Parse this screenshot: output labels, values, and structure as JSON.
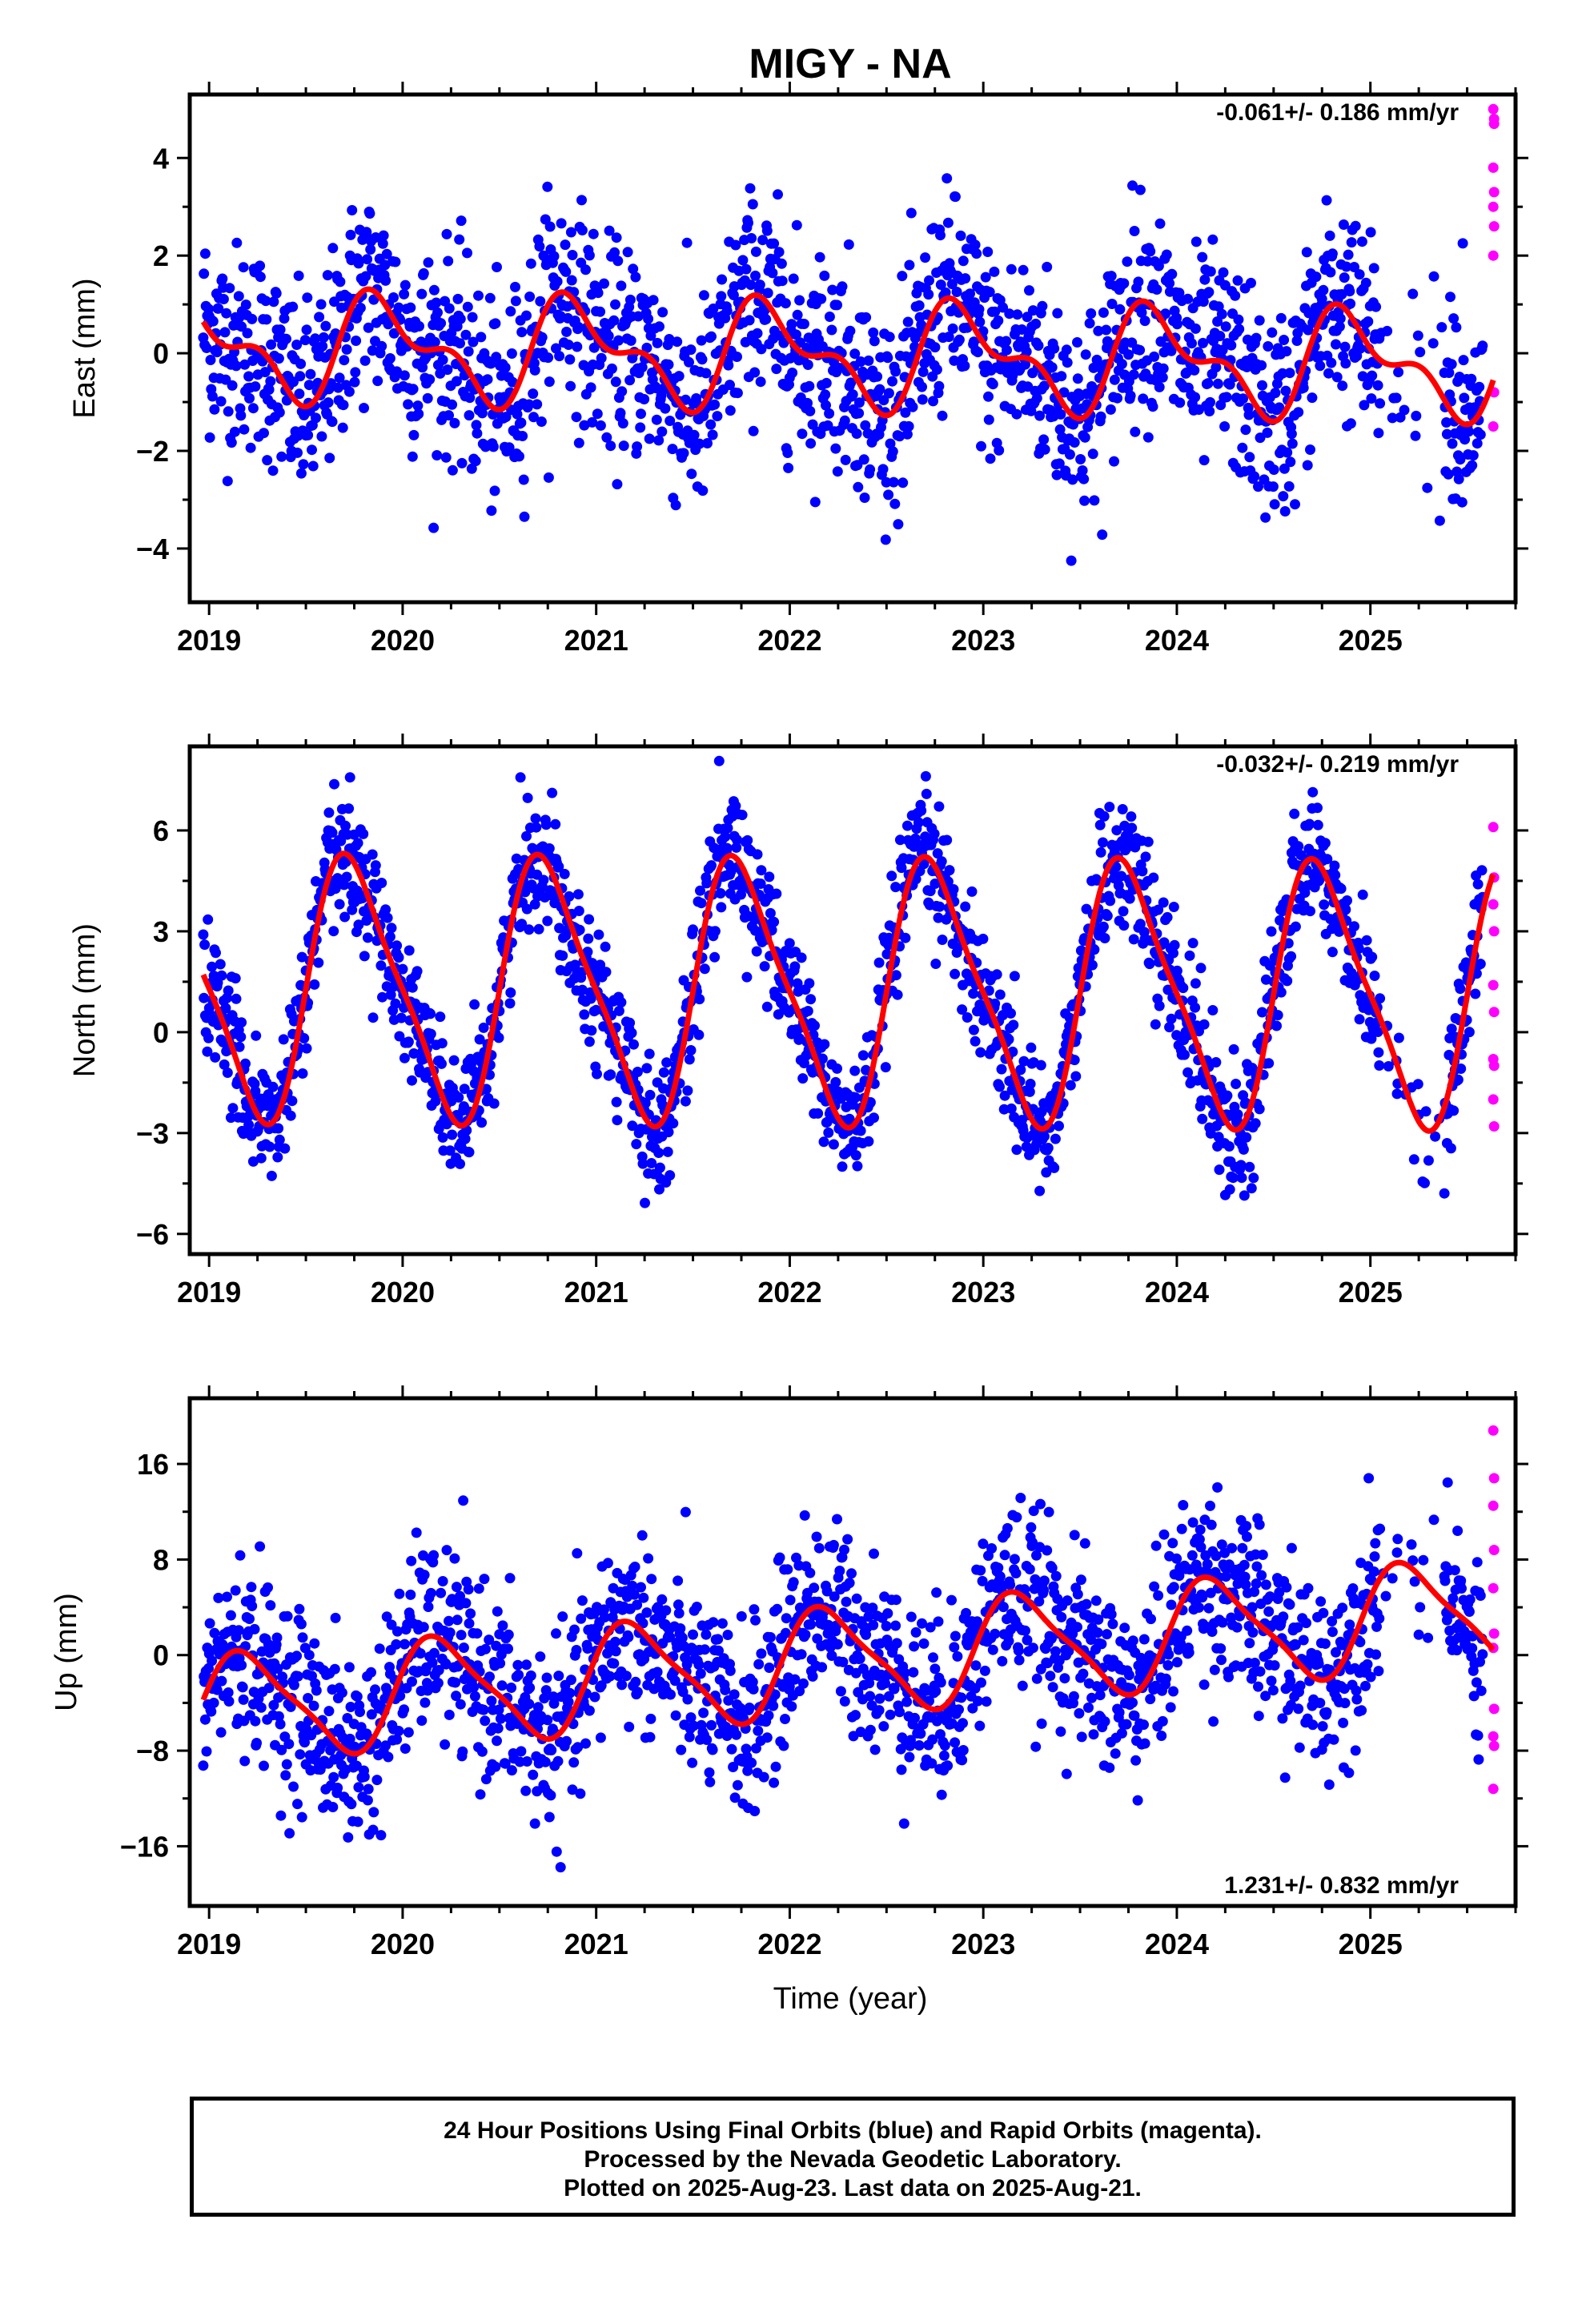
{
  "title": "MIGY - NA",
  "xlabel": "Time (year)",
  "footer": {
    "line1": "24 Hour Positions Using Final Orbits (blue) and Rapid Orbits (magenta).",
    "line2": "Processed by the Nevada Geodetic Laboratory.",
    "line3": "Plotted on 2025-Aug-23. Last data on 2025-Aug-21."
  },
  "colors": {
    "final": "#0000ff",
    "rapid": "#ff00ff",
    "model": "#ff0000",
    "axis": "#000000"
  },
  "chart_data": [
    {
      "type": "scatter",
      "ylabel": "East (mm)",
      "rate_label": "-0.061+/- 0.186 mm/yr",
      "xlim": [
        2018.9,
        2025.75
      ],
      "ylim": [
        -5.1,
        5.3
      ],
      "xticks": [
        2019,
        2020,
        2021,
        2022,
        2023,
        2024,
        2025
      ],
      "yticks": [
        -4,
        -2,
        0,
        2,
        4
      ],
      "model": {
        "amp": 0.9,
        "amp2": 0.5,
        "phase": 0.66,
        "trend": -0.061,
        "offset": 0.15
      },
      "noise": 1.05,
      "rapid_values": [
        5.0,
        4.7,
        3.8,
        3.3,
        3.0,
        2.6,
        2.0,
        -0.8,
        -1.5,
        4.8
      ]
    },
    {
      "type": "scatter",
      "ylabel": "North (mm)",
      "rate_label": "-0.032+/- 0.219 mm/yr",
      "xlim": [
        2018.9,
        2025.75
      ],
      "ylim": [
        -6.6,
        8.5
      ],
      "xticks": [
        2019,
        2020,
        2021,
        2022,
        2023,
        2024,
        2025
      ],
      "yticks": [
        -6,
        -3,
        0,
        3,
        6
      ],
      "model": {
        "amp": 3.75,
        "amp2": 0.8,
        "phase": 0.5,
        "trend": -0.032,
        "offset": 1.3
      },
      "noise": 0.95,
      "rapid_values": [
        6.1,
        4.6,
        3.8,
        3.0,
        1.4,
        0.6,
        -0.8,
        -1.0,
        -2.0,
        -2.8
      ]
    },
    {
      "type": "scatter",
      "ylabel": "Up (mm)",
      "rate_label": "1.231+/- 0.832 mm/yr",
      "xlim": [
        2018.9,
        2025.75
      ],
      "ylim": [
        -21,
        21.5
      ],
      "xticks": [
        2019,
        2020,
        2021,
        2022,
        2023,
        2024,
        2025
      ],
      "yticks": [
        -16,
        -8,
        0,
        8,
        16
      ],
      "model": {
        "amp": 4.3,
        "amp2": 1.0,
        "phase": 0.95,
        "trend": 1.231,
        "offset": -4.5
      },
      "noise": 3.8,
      "rapid_values": [
        18.8,
        14.8,
        12.5,
        8.8,
        5.6,
        1.8,
        0.6,
        -4.5,
        -6.8,
        -7.6,
        -11.2
      ]
    }
  ]
}
